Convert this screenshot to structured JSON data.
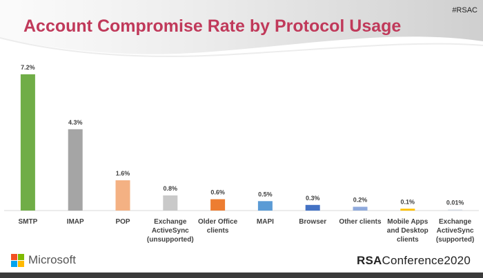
{
  "header": {
    "hashtag": "#RSAC",
    "title": "Account Compromise Rate by Protocol Usage"
  },
  "footer": {
    "microsoft_label": "Microsoft",
    "rsa_brand": "RSA",
    "rsa_event": "Conference2020"
  },
  "chart_data": {
    "type": "bar",
    "title": "Account Compromise Rate by Protocol Usage",
    "xlabel": "",
    "ylabel": "",
    "ylim": [
      0,
      7.2
    ],
    "grid": false,
    "categories": [
      "SMTP",
      "IMAP",
      "POP",
      "Exchange ActiveSync (unsupported)",
      "Older Office clients",
      "MAPI",
      "Browser",
      "Other clients",
      "Mobile Apps and Desktop clients",
      "Exchange ActiveSync (supported)"
    ],
    "category_lines": [
      [
        "SMTP"
      ],
      [
        "IMAP"
      ],
      [
        "POP"
      ],
      [
        "Exchange",
        "ActiveSync",
        "(unsupported)"
      ],
      [
        "Older Office",
        "clients"
      ],
      [
        "MAPI"
      ],
      [
        "Browser"
      ],
      [
        "Other clients"
      ],
      [
        "Mobile Apps",
        "and Desktop",
        "clients"
      ],
      [
        "Exchange",
        "ActiveSync",
        "(supported)"
      ]
    ],
    "values": [
      7.2,
      4.3,
      1.6,
      0.8,
      0.6,
      0.5,
      0.3,
      0.2,
      0.1,
      0.01
    ],
    "data_labels": [
      "7.2%",
      "4.3%",
      "1.6%",
      "0.8%",
      "0.6%",
      "0.5%",
      "0.3%",
      "0.2%",
      "0.1%",
      "0.01%"
    ],
    "colors": [
      "#70ad47",
      "#a5a5a5",
      "#f4b183",
      "#c9c9c9",
      "#ed7d31",
      "#5b9bd5",
      "#4472c4",
      "#8faadc",
      "#ffc000",
      "#d6dce5"
    ]
  },
  "colors": {
    "title": "#c0395a",
    "microsoft": [
      "#f25022",
      "#7fba00",
      "#00a4ef",
      "#ffb900"
    ]
  }
}
